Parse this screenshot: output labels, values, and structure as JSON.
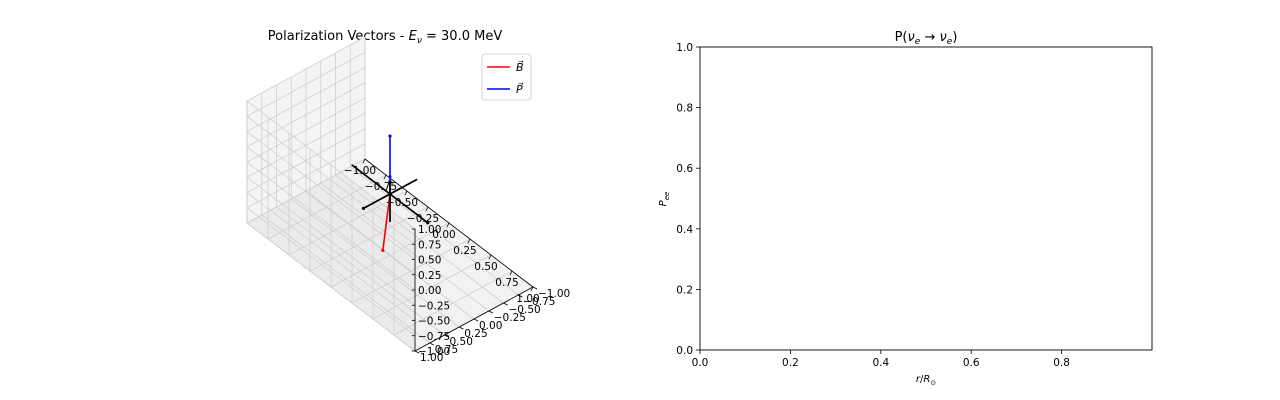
{
  "chart_data": [
    {
      "type": "line",
      "projection": "3d",
      "title": "Polarization Vectors - Eν = 30.0 MeV",
      "title_parts": {
        "prefix": "Polarization Vectors - ",
        "var": "E",
        "sub": "ν",
        "suffix": " = 30.0 MeV"
      },
      "xlim": [
        -1,
        1
      ],
      "ylim": [
        -1,
        1
      ],
      "zlim": [
        -1,
        1
      ],
      "x_ticks": [
        "−1.00",
        "−0.75",
        "−0.50",
        "−0.25",
        "0.00",
        "0.25",
        "0.50",
        "0.75",
        "1.00"
      ],
      "y_ticks": [
        "−1.00",
        "−0.75",
        "−0.50",
        "−0.25",
        "0.00",
        "0.25",
        "0.50",
        "0.75",
        "1.00"
      ],
      "z_ticks": [
        "−1.00",
        "−0.75",
        "−0.50",
        "−0.25",
        "0.00",
        "0.25",
        "0.50",
        "0.75",
        "1.00"
      ],
      "grid": true,
      "legend": {
        "placement": "top-right",
        "entries": [
          {
            "label": "B⃗",
            "color": "#ff0000"
          },
          {
            "label": "P⃗",
            "color": "#0000ff"
          }
        ]
      },
      "series": [
        {
          "name": "B⃗",
          "color": "#ff0000",
          "x": [
            0,
            -0.05
          ],
          "y": [
            0,
            0.05
          ],
          "z": [
            0,
            -0.95
          ]
        },
        {
          "name": "P⃗",
          "color": "#0000ff",
          "x": [
            0,
            0
          ],
          "y": [
            0,
            0
          ],
          "z": [
            0,
            0.95
          ]
        },
        {
          "color": "#000000",
          "x": [
            -0.45,
            0.45
          ],
          "y": [
            0,
            0
          ],
          "z": [
            0,
            0
          ]
        },
        {
          "color": "#000000",
          "x": [
            0,
            0
          ],
          "y": [
            -0.45,
            0.45
          ],
          "z": [
            0,
            0
          ]
        },
        {
          "color": "#000000",
          "x": [
            0,
            0
          ],
          "y": [
            0,
            0
          ],
          "z": [
            -0.45,
            0.2
          ]
        }
      ]
    },
    {
      "type": "line",
      "title": "P(νe → νe)",
      "title_parts": {
        "prefix": "P(",
        "var": "ν",
        "sub": "e",
        "mid": " → ",
        "var2": "ν",
        "sub2": "e",
        "suffix": ")"
      },
      "xlabel": "r/R⊙",
      "xlabel_parts": {
        "var": "r",
        "mid": "/",
        "var2": "R",
        "sub2": "⊙"
      },
      "ylabel": "Pee",
      "ylabel_parts": {
        "var": "P",
        "sub": "ee"
      },
      "xlim": [
        0,
        1
      ],
      "ylim": [
        0,
        1
      ],
      "x_ticks": [
        "0.0",
        "0.2",
        "0.4",
        "0.6",
        "0.8"
      ],
      "y_ticks": [
        "0.0",
        "0.2",
        "0.4",
        "0.6",
        "0.8",
        "1.0"
      ],
      "grid": false,
      "series": []
    }
  ]
}
